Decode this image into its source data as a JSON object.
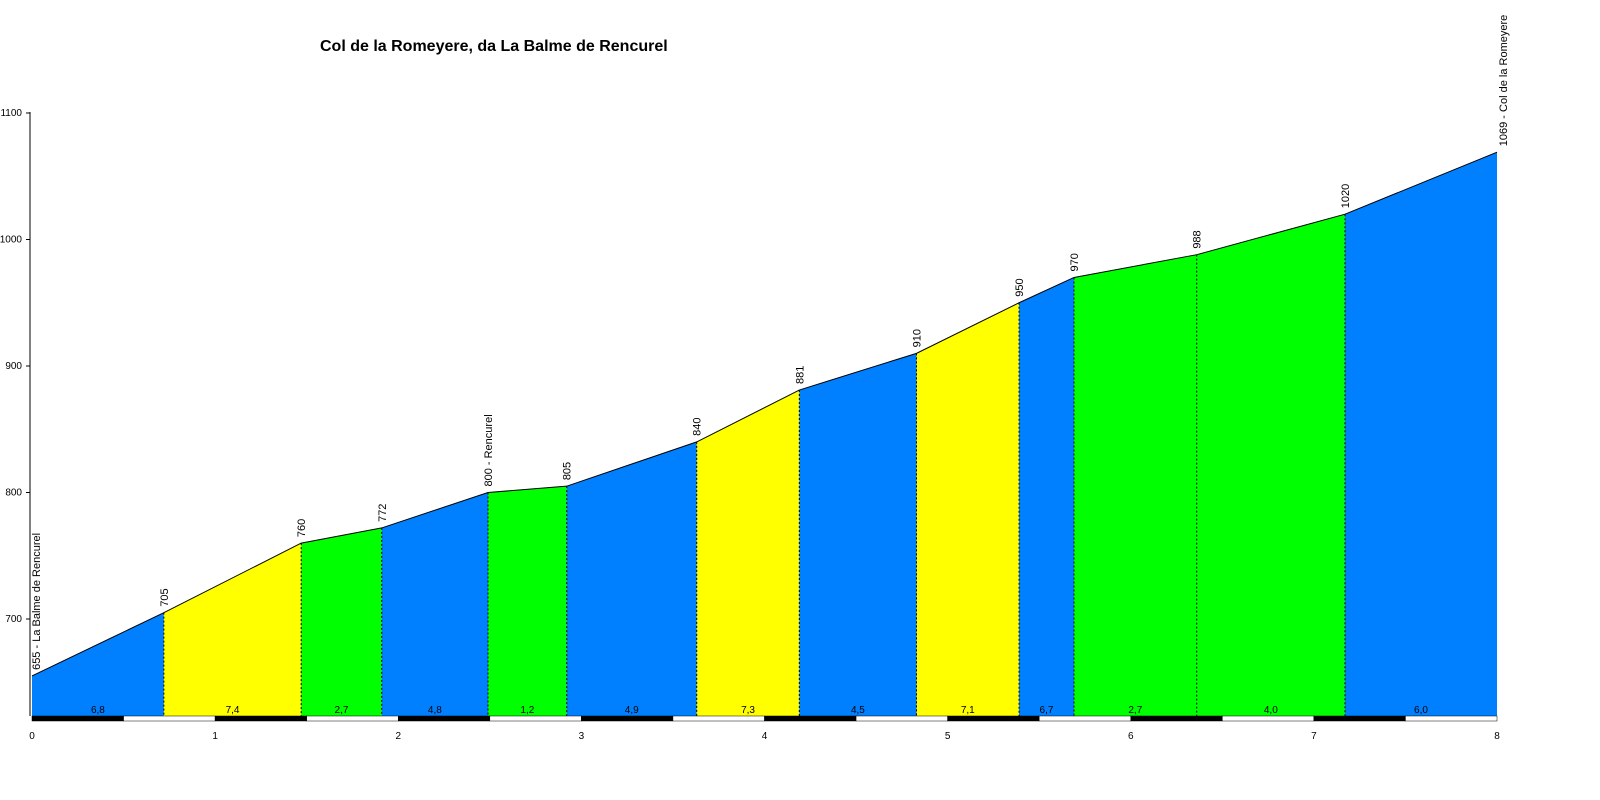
{
  "chart_data": {
    "type": "area",
    "title": "Col de la Romeyere, da La Balme de Rencurel",
    "xlabel": "",
    "ylabel": "",
    "xlim": [
      0,
      8
    ],
    "ylim": [
      620,
      1100
    ],
    "y_ticks": [
      "700",
      "800",
      "900",
      "1000",
      "1100"
    ],
    "x_ticks": [
      "0",
      "1",
      "2",
      "3",
      "4",
      "5",
      "6",
      "7",
      "8"
    ],
    "grid": false,
    "grade_colors": {
      "blue": "#0080ff",
      "yellow": "#ffff00",
      "green": "#00ff00"
    },
    "points": [
      {
        "x": 0.0,
        "elev": 655,
        "label": "655 - La Balme de Rencurel"
      },
      {
        "x": 0.72,
        "elev": 705,
        "label": "705"
      },
      {
        "x": 1.47,
        "elev": 760,
        "label": "760"
      },
      {
        "x": 1.91,
        "elev": 772,
        "label": "772"
      },
      {
        "x": 2.49,
        "elev": 800,
        "label": "800 - Rencurel"
      },
      {
        "x": 2.92,
        "elev": 805,
        "label": "805"
      },
      {
        "x": 3.63,
        "elev": 840,
        "label": "840"
      },
      {
        "x": 4.19,
        "elev": 881,
        "label": "881"
      },
      {
        "x": 4.83,
        "elev": 910,
        "label": "910"
      },
      {
        "x": 5.39,
        "elev": 950,
        "label": "950"
      },
      {
        "x": 5.69,
        "elev": 970,
        "label": "970"
      },
      {
        "x": 6.36,
        "elev": 988,
        "label": "988"
      },
      {
        "x": 7.17,
        "elev": 1020,
        "label": "1020"
      },
      {
        "x": 8.0,
        "elev": 1069,
        "label": "1069 - Col de la Romeyere"
      }
    ],
    "segments": [
      {
        "grade": "6,8",
        "color": "blue"
      },
      {
        "grade": "7,4",
        "color": "yellow"
      },
      {
        "grade": "2,7",
        "color": "green"
      },
      {
        "grade": "4,8",
        "color": "blue"
      },
      {
        "grade": "1,2",
        "color": "green"
      },
      {
        "grade": "4,9",
        "color": "blue"
      },
      {
        "grade": "7,3",
        "color": "yellow"
      },
      {
        "grade": "4,5",
        "color": "blue"
      },
      {
        "grade": "7,1",
        "color": "yellow"
      },
      {
        "grade": "6,7",
        "color": "blue"
      },
      {
        "grade": "2,7",
        "color": "green"
      },
      {
        "grade": "4,0",
        "color": "green"
      },
      {
        "grade": "6,0",
        "color": "blue"
      }
    ]
  }
}
